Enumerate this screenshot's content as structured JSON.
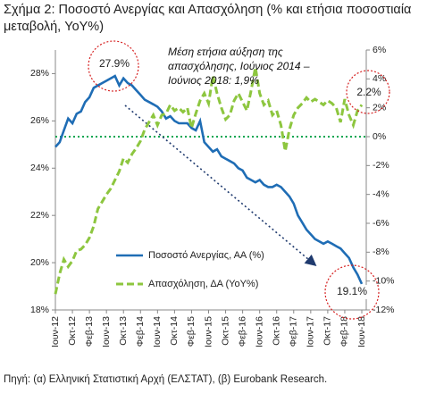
{
  "chart_data": {
    "type": "line",
    "title": "Σχήμα 2: Ποσοστό Ανεργίας και Απασχόληση (% και ετήσια ποσοστιαία μεταβολή, YoY%)",
    "source": "Πηγή: (α) Ελληνική Στατιστική Αρχή (ΕΛΣΤΑΤ), (β) Eurobank Research.",
    "categories": [
      "Ιουν-12",
      null,
      null,
      null,
      "Οκτ-12",
      null,
      null,
      null,
      "Φεβ-13",
      null,
      null,
      null,
      "Ιουν-13",
      null,
      null,
      null,
      "Οκτ-13",
      null,
      null,
      null,
      "Φεβ-14",
      null,
      null,
      null,
      "Ιουν-14",
      null,
      null,
      null,
      "Οκτ-14",
      null,
      null,
      null,
      "Φεβ-15",
      null,
      null,
      null,
      "Ιουν-15",
      null,
      null,
      null,
      "Οκτ-15",
      null,
      null,
      null,
      "Φεβ-16",
      null,
      null,
      null,
      "Ιουν-16",
      null,
      null,
      null,
      "Οκτ-16",
      null,
      null,
      null,
      "Φεβ-17",
      null,
      null,
      null,
      "Ιουν-17",
      null,
      null,
      null,
      "Οκτ-17",
      null,
      null,
      null,
      "Φεβ-18",
      null,
      null,
      null,
      "Ιουν-18"
    ],
    "series": [
      {
        "name": "Ποσοστό Ανεργίας, ΑΑ (%)",
        "color": "#1f6db5",
        "axis": "y",
        "values": [
          24.9,
          25.1,
          25.6,
          26.1,
          25.9,
          26.3,
          26.4,
          26.8,
          27.0,
          27.4,
          27.5,
          27.6,
          27.7,
          27.8,
          27.9,
          27.5,
          27.8,
          27.6,
          27.5,
          27.3,
          27.1,
          26.9,
          26.8,
          26.7,
          26.6,
          26.4,
          26.1,
          26.2,
          26.0,
          25.9,
          25.9,
          25.9,
          25.7,
          25.6,
          26.0,
          25.1,
          24.9,
          24.7,
          24.8,
          24.5,
          24.4,
          24.3,
          24.2,
          24.0,
          23.9,
          23.6,
          23.5,
          23.4,
          23.5,
          23.3,
          23.2,
          23.2,
          23.3,
          23.2,
          23.0,
          22.8,
          22.5,
          22.0,
          21.7,
          21.4,
          21.2,
          21.0,
          20.9,
          20.8,
          20.9,
          20.8,
          20.7,
          20.6,
          20.4,
          20.2,
          19.8,
          19.5,
          19.1
        ]
      },
      {
        "name": "Απασχόληση, ΔΑ (YoY%)",
        "color": "#8dc63f",
        "axis": "y2",
        "values": [
          -10.9,
          -9.5,
          -8.5,
          -9.0,
          -8.6,
          -7.9,
          -7.8,
          -7.5,
          -7.0,
          -6.2,
          -5.0,
          -4.5,
          -4.0,
          -3.6,
          -3.0,
          -2.4,
          -1.5,
          -1.8,
          -1.2,
          -0.8,
          -0.3,
          0.5,
          1.0,
          1.5,
          0.8,
          1.5,
          1.6,
          2.2,
          1.8,
          2.0,
          1.7,
          2.0,
          0.6,
          1.6,
          2.5,
          3.0,
          2.3,
          4.2,
          3.0,
          2.0,
          1.2,
          1.5,
          2.5,
          3.0,
          2.4,
          1.8,
          3.2,
          4.8,
          3.0,
          2.2,
          2.5,
          1.5,
          1.8,
          0.8,
          -1.0,
          0.5,
          1.5,
          2.0,
          2.3,
          2.7,
          2.4,
          2.6,
          2.4,
          2.2,
          2.5,
          2.3,
          2.0,
          1.0,
          2.6,
          1.5,
          0.8,
          1.8,
          2.2
        ]
      }
    ],
    "ylim": [
      18,
      29
    ],
    "yticks": [
      {
        "value": 18,
        "label": "18%"
      },
      {
        "value": 20,
        "label": "20%"
      },
      {
        "value": 22,
        "label": "22%"
      },
      {
        "value": 24,
        "label": "24%"
      },
      {
        "value": 26,
        "label": "26%"
      },
      {
        "value": 28,
        "label": "28%"
      }
    ],
    "y2lim": [
      -12,
      6
    ],
    "y2ticks": [
      {
        "value": -12,
        "label": "-12%"
      },
      {
        "value": -10,
        "label": "-10%"
      },
      {
        "value": -8,
        "label": "-8%"
      },
      {
        "value": -6,
        "label": "-6%"
      },
      {
        "value": -4,
        "label": "-4%"
      },
      {
        "value": -2,
        "label": "-2%"
      },
      {
        "value": 0,
        "label": "0%"
      },
      {
        "value": 2,
        "label": "2%"
      },
      {
        "value": 4,
        "label": "4%"
      },
      {
        "value": 6,
        "label": "6%"
      }
    ],
    "reference_line": {
      "axis": "y2",
      "value": 0,
      "color": "#00a651"
    },
    "annotations": [
      "27.9%",
      "19.1%",
      "2.2%",
      "Μέση ετήσια αύξηση της απασχόλησης, Ιούνιος 2014 – Ιούνιος 2018: 1,9%"
    ],
    "grid": false
  }
}
